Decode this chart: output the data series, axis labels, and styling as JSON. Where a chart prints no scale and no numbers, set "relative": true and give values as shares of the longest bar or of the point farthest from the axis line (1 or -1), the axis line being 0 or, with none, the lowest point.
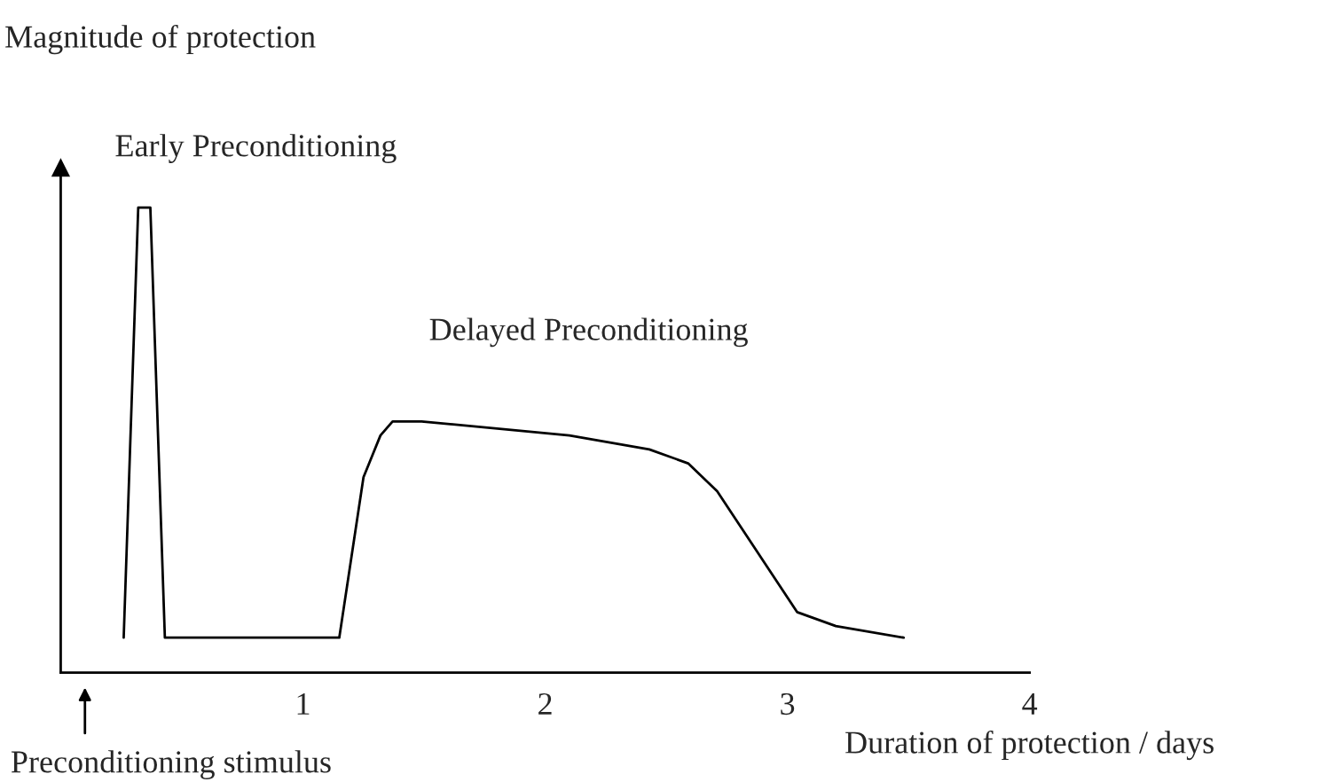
{
  "chart_data": {
    "type": "line",
    "relative": true,
    "xlabel": "Duration of protection / days",
    "ylabel": "Magnitude of protection",
    "x": [
      0.26,
      0.32,
      0.37,
      0.43,
      1.15,
      1.25,
      1.32,
      1.37,
      1.49,
      2.1,
      2.43,
      2.59,
      2.71,
      3.04,
      3.2,
      3.48
    ],
    "series": [
      {
        "color": "#000000",
        "values": [
          0.075,
          1,
          1,
          0.075,
          0.075,
          0.42,
          0.51,
          0.54,
          0.54,
          0.51,
          0.48,
          0.45,
          0.39,
          0.13,
          0.1,
          0.075
        ]
      }
    ],
    "xlim": [
      0,
      4
    ],
    "xticks": [
      1,
      2,
      3,
      4
    ],
    "grid": false,
    "legend": false,
    "marker": "none",
    "line_style": "solid",
    "annotations": [
      "Early Preconditioning",
      "Delayed Preconditioning",
      "Preconditioning stimulus"
    ]
  }
}
